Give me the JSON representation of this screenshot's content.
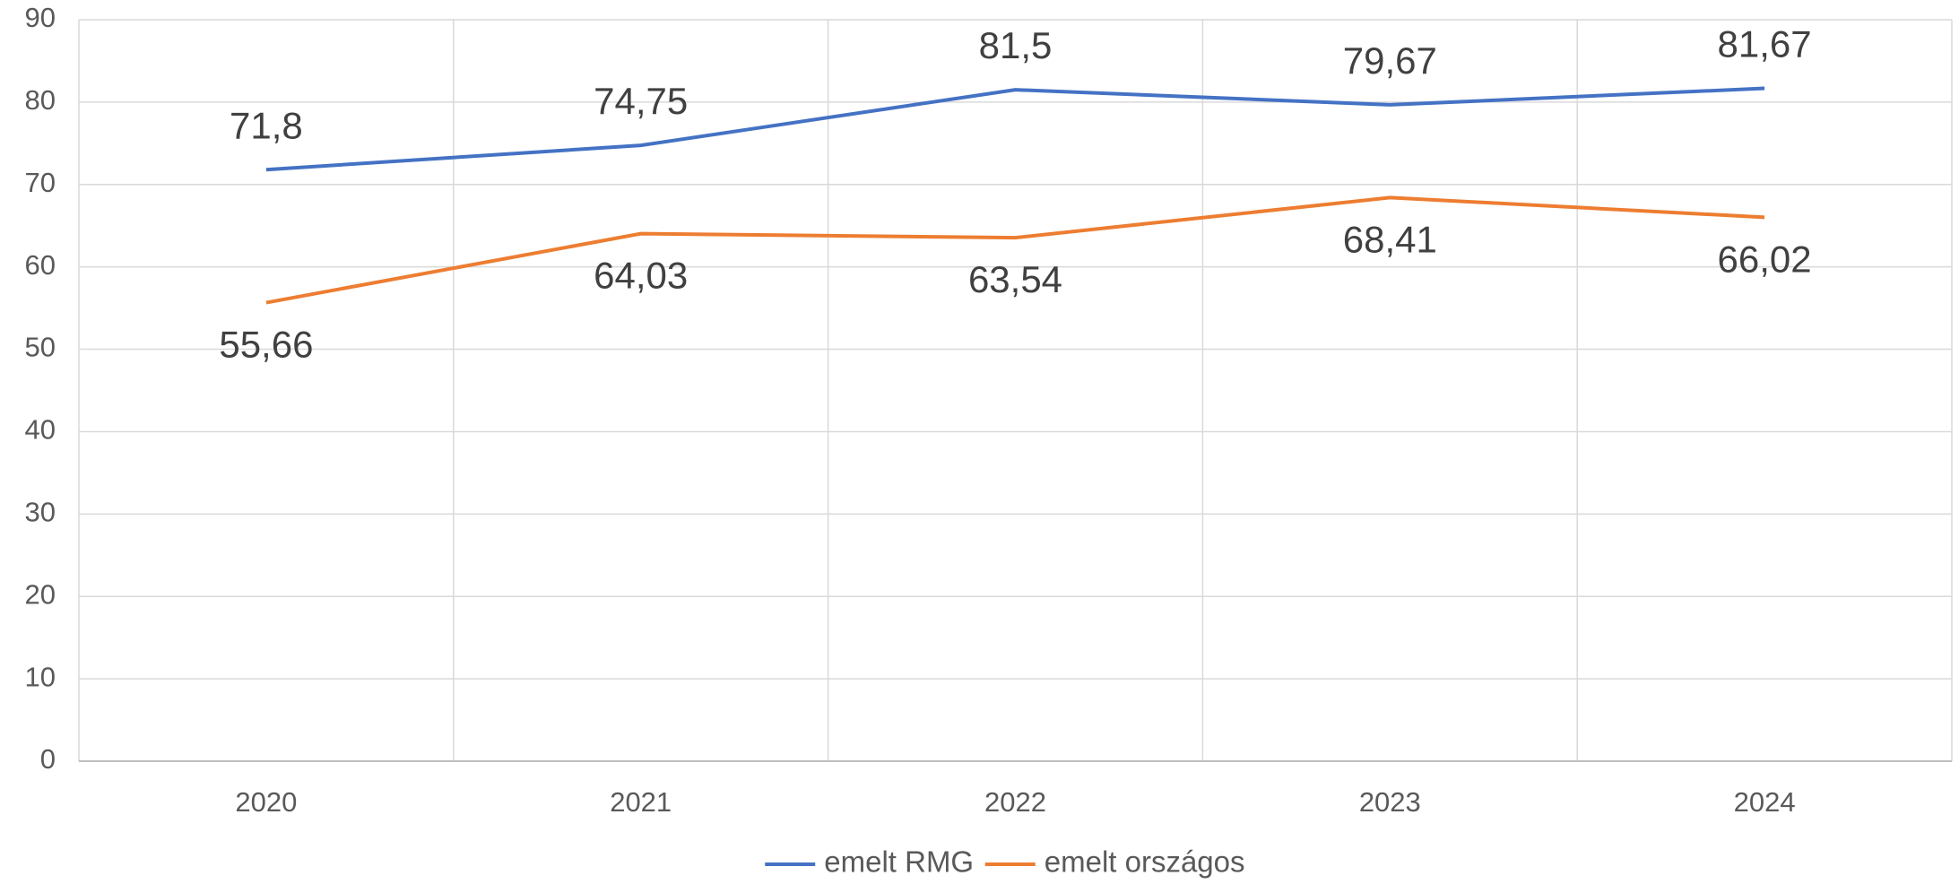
{
  "chart_data": {
    "type": "line",
    "categories": [
      "2020",
      "2021",
      "2022",
      "2023",
      "2024"
    ],
    "series": [
      {
        "name": "emelt RMG",
        "color": "#4472c4",
        "values": [
          71.8,
          74.75,
          81.5,
          79.67,
          81.67
        ],
        "value_labels": [
          "71,8",
          "74,75",
          "81,5",
          "79,67",
          "81,67"
        ]
      },
      {
        "name": "emelt országos",
        "color": "#ed7d31",
        "values": [
          55.66,
          64.03,
          63.54,
          68.41,
          66.02
        ],
        "value_labels": [
          "55,66",
          "64,03",
          "63,54",
          "68,41",
          "66,02"
        ]
      }
    ],
    "ylim": [
      0,
      90
    ],
    "yticks": [
      0,
      10,
      20,
      30,
      40,
      50,
      60,
      70,
      80,
      90
    ],
    "grid": true,
    "legend": "bottom"
  }
}
